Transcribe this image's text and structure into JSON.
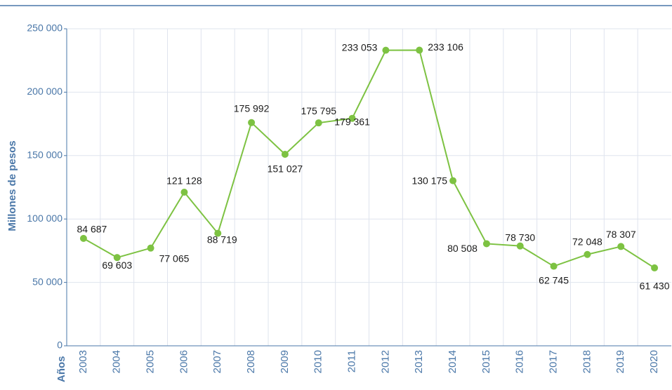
{
  "chart_data": {
    "type": "line",
    "y_axis_label": "Millones de pesos",
    "x_axis_label": "Años",
    "categories": [
      "2003",
      "2004",
      "2005",
      "2006",
      "2007",
      "2008",
      "2009",
      "2010",
      "2011",
      "2012",
      "2013",
      "2014",
      "2015",
      "2016",
      "2017",
      "2018",
      "2019",
      "2020"
    ],
    "series": [
      {
        "name": "Millones de pesos",
        "color": "#7dc242",
        "values": [
          84687,
          69603,
          77065,
          121128,
          88719,
          175992,
          151027,
          175795,
          179361,
          233053,
          233106,
          130175,
          80508,
          78730,
          62745,
          72048,
          78307,
          61430
        ],
        "value_labels": [
          "84 687",
          "69 603",
          "77 065",
          "121 128",
          "88 719",
          "175 992",
          "151 027",
          "175 795",
          "179 361",
          "233 053",
          "233 106",
          "130 175",
          "80 508",
          "78 730",
          "62 745",
          "72 048",
          "78 307",
          "61 430"
        ]
      }
    ],
    "ylim": [
      0,
      250000
    ],
    "yticks": [
      0,
      {
        "value": 50000,
        "label": "50 000"
      },
      {
        "value": 100000,
        "label": "100 000"
      },
      {
        "value": 150000,
        "label": "150 000"
      },
      {
        "value": 200000,
        "label": "200 000"
      },
      {
        "value": 250000,
        "label": "250 000"
      }
    ],
    "grid": true
  }
}
